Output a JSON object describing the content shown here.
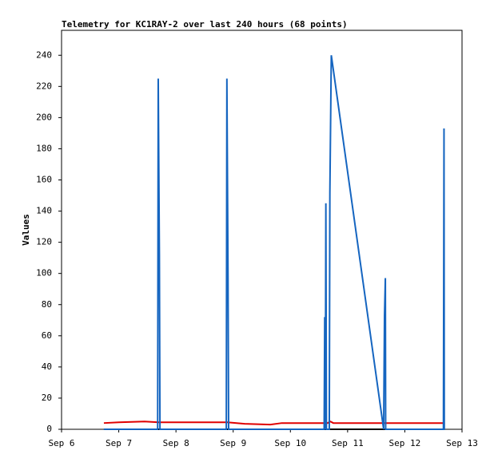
{
  "chart_data": {
    "type": "line",
    "title": "Telemetry for KC1RAY-2 over last 240 hours (68 points)",
    "y_label": "Values",
    "xlim": [
      6,
      13
    ],
    "xticks": [
      {
        "value": 6,
        "label": "Sep 6"
      },
      {
        "value": 7,
        "label": "Sep 7"
      },
      {
        "value": 8,
        "label": "Sep 8"
      },
      {
        "value": 9,
        "label": "Sep 9"
      },
      {
        "value": 10,
        "label": "Sep 10"
      },
      {
        "value": 11,
        "label": "Sep 11"
      },
      {
        "value": 12,
        "label": "Sep 12"
      },
      {
        "value": 13,
        "label": "Sep 13"
      }
    ],
    "ylim": [
      0,
      256
    ],
    "yticks": [
      0,
      20,
      40,
      60,
      80,
      100,
      120,
      140,
      160,
      180,
      200,
      220,
      240
    ],
    "grid": false,
    "series": [
      {
        "color": "#000000",
        "x": [
          6.74,
          12.7
        ],
        "values": [
          0,
          0
        ]
      },
      {
        "color": "#e00000",
        "x": [
          6.74,
          7.0,
          7.45,
          7.7,
          8.9,
          9.2,
          9.65,
          9.85,
          10.65,
          10.7,
          10.75,
          12.7
        ],
        "values": [
          4,
          4.5,
          5,
          4.5,
          4.5,
          3.5,
          3,
          4,
          4,
          5,
          4,
          4
        ]
      },
      {
        "color": "#1565c0",
        "x": [
          6.74,
          7.68,
          7.69,
          7.71,
          7.72,
          8.88,
          8.89,
          8.91,
          8.92,
          10.59,
          10.6,
          10.61,
          10.62,
          10.63,
          10.68,
          10.69,
          10.715,
          11.63,
          11.635,
          11.645,
          11.66,
          11.665,
          12.675,
          12.685,
          12.69,
          12.7
        ],
        "values": [
          0,
          0,
          225,
          112,
          0,
          0,
          225,
          97,
          0,
          0,
          72,
          0,
          145,
          0,
          0,
          152,
          240,
          0,
          25,
          73,
          97,
          0,
          0,
          193,
          0,
          0
        ]
      }
    ]
  }
}
